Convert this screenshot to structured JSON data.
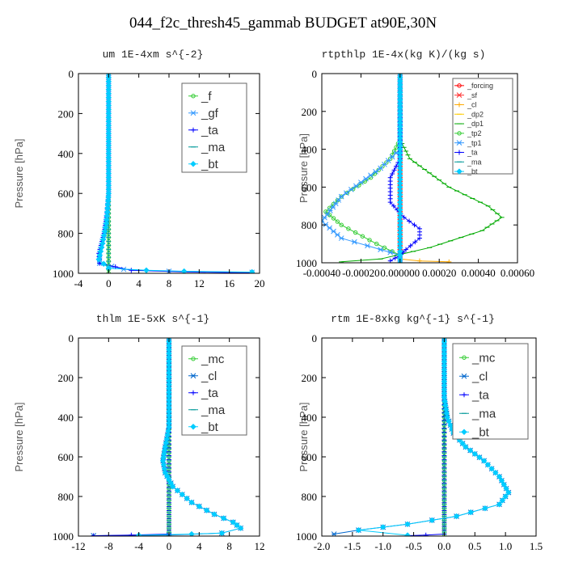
{
  "figure_title": "044_f2c_thresh45_gammab  BUDGET at90E,30N",
  "colors": {
    "f": "#33cc33",
    "gf": "#3399ff",
    "ta": "#0000ff",
    "ma": "#009999",
    "bt": "#00ccff",
    "mc": "#33cc33",
    "cl": "#0066cc",
    "forcing": "#ff0000",
    "sf": "#ff3333",
    "cl_rt": "#ffaa00",
    "dp2": "#ffcc00",
    "dp1": "#00aa00",
    "tp2": "#33cc33",
    "tp1": "#3399ff"
  },
  "chart_data": [
    {
      "type": "line",
      "title": "um  1E-4xm s^{-2}",
      "ylabel": "Pressure [hPa]",
      "xlim": [
        -4,
        20
      ],
      "ylim": [
        1000,
        0
      ],
      "xticks": [
        "-4",
        "0",
        "4",
        "8",
        "12",
        "16",
        "20"
      ],
      "yticks": [
        "0",
        "200",
        "400",
        "600",
        "800",
        "1000"
      ],
      "legend": "top-right",
      "series": [
        {
          "name": "_f",
          "color_key": "f",
          "marker": "circle",
          "points": [
            [
              0,
              0
            ],
            [
              0,
              200
            ],
            [
              0,
              400
            ],
            [
              0,
              600
            ],
            [
              0,
              800
            ],
            [
              0,
              1000
            ]
          ]
        },
        {
          "name": "_gf",
          "color_key": "gf",
          "marker": "star",
          "points": [
            [
              0,
              0
            ],
            [
              0,
              500
            ],
            [
              0,
              600
            ],
            [
              -0.2,
              700
            ],
            [
              -0.6,
              800
            ],
            [
              -1.2,
              900
            ],
            [
              -1.2,
              950
            ],
            [
              2,
              980
            ],
            [
              8,
              990
            ],
            [
              19,
              995
            ]
          ]
        },
        {
          "name": "_ta",
          "color_key": "ta",
          "marker": "plus",
          "points": [
            [
              0,
              0
            ],
            [
              0,
              600
            ],
            [
              -0.2,
              700
            ],
            [
              -0.6,
              800
            ],
            [
              -1.3,
              900
            ],
            [
              -1.2,
              950
            ],
            [
              3,
              985
            ],
            [
              10,
              993
            ],
            [
              19,
              998
            ]
          ]
        },
        {
          "name": "_ma",
          "color_key": "ma",
          "marker": "dash",
          "points": [
            [
              0,
              0
            ],
            [
              0,
              1000
            ]
          ]
        },
        {
          "name": "_bt",
          "color_key": "bt",
          "marker": "diamond",
          "points": [
            [
              0,
              0
            ],
            [
              0,
              600
            ],
            [
              -0.3,
              750
            ],
            [
              -0.8,
              850
            ],
            [
              -1.3,
              930
            ],
            [
              0,
              975
            ],
            [
              5,
              985
            ],
            [
              10,
              990
            ],
            [
              19,
              994
            ]
          ]
        }
      ]
    },
    {
      "type": "line",
      "title": "rtpthlp  1E-4x(kg K)/(kg s)",
      "ylabel": "Pressure [hPa]",
      "xlim": [
        -0.0004,
        0.0006
      ],
      "ylim": [
        1000,
        0
      ],
      "xticks": [
        "-0.00040",
        "-0.00020",
        "0.000000",
        "0.00020",
        "0.00040",
        "0.00060"
      ],
      "yticks": [
        "0",
        "200",
        "400",
        "600",
        "800",
        "1000"
      ],
      "legend": "top-right",
      "series": [
        {
          "name": "_forcing",
          "color_key": "forcing",
          "marker": "circle",
          "points": [
            [
              0,
              0
            ],
            [
              0,
              1000
            ]
          ]
        },
        {
          "name": "_sf",
          "color_key": "sf",
          "marker": "star",
          "points": [
            [
              0,
              0
            ],
            [
              0,
              1000
            ]
          ]
        },
        {
          "name": "_cl",
          "color_key": "cl_rt",
          "marker": "plus",
          "points": [
            [
              0,
              0
            ],
            [
              0,
              980
            ],
            [
              0.0001,
              990
            ],
            [
              0.00025,
              995
            ]
          ]
        },
        {
          "name": "_dp2",
          "color_key": "dp2",
          "marker": "dash",
          "points": [
            [
              0,
              0
            ],
            [
              0,
              1000
            ]
          ]
        },
        {
          "name": "_dp1",
          "color_key": "dp1",
          "marker": "dash",
          "points": [
            [
              0,
              0
            ],
            [
              0,
              350
            ],
            [
              5e-05,
              450
            ],
            [
              0.00025,
              600
            ],
            [
              0.00045,
              700
            ],
            [
              0.00052,
              760
            ],
            [
              0.00042,
              830
            ],
            [
              0.00015,
              920
            ],
            [
              -0.0001,
              980
            ],
            [
              -0.0003,
              995
            ]
          ]
        },
        {
          "name": "_tp2",
          "color_key": "tp2",
          "marker": "circle",
          "points": [
            [
              0,
              0
            ],
            [
              0,
              350
            ],
            [
              -5e-05,
              450
            ],
            [
              -0.00015,
              550
            ],
            [
              -0.0003,
              650
            ],
            [
              -0.00038,
              730
            ],
            [
              -0.0003,
              800
            ],
            [
              -0.00012,
              900
            ],
            [
              0,
              960
            ],
            [
              0,
              1000
            ]
          ]
        },
        {
          "name": "_tp1",
          "color_key": "tp1",
          "marker": "star",
          "points": [
            [
              0,
              0
            ],
            [
              0,
              400
            ],
            [
              -0.0001,
              500
            ],
            [
              -0.0003,
              650
            ],
            [
              -0.0004,
              780
            ],
            [
              -0.0003,
              870
            ],
            [
              -0.0001,
              930
            ],
            [
              0,
              960
            ],
            [
              0,
              1000
            ]
          ]
        },
        {
          "name": "_ta",
          "color_key": "ta",
          "marker": "plus",
          "points": [
            [
              0,
              0
            ],
            [
              0,
              450
            ],
            [
              -5e-05,
              550
            ],
            [
              -5e-05,
              680
            ],
            [
              2e-05,
              760
            ],
            [
              0.0001,
              820
            ],
            [
              0.0001,
              870
            ],
            [
              3e-05,
              930
            ],
            [
              0,
              960
            ],
            [
              -5e-05,
              990
            ]
          ]
        },
        {
          "name": "_ma",
          "color_key": "ma",
          "marker": "dash",
          "points": [
            [
              0,
              0
            ],
            [
              0,
              1000
            ]
          ]
        },
        {
          "name": "_bt",
          "color_key": "bt",
          "marker": "diamond",
          "points": [
            [
              0,
              0
            ],
            [
              0,
              1000
            ]
          ]
        }
      ]
    },
    {
      "type": "line",
      "title": "thlm  1E-5xK s^{-1}",
      "ylabel": "Pressure [hPa]",
      "xlim": [
        -12,
        12
      ],
      "ylim": [
        1000,
        0
      ],
      "xticks": [
        "-12",
        "-8",
        "-4",
        "0",
        "4",
        "8",
        "12"
      ],
      "yticks": [
        "0",
        "200",
        "400",
        "600",
        "800",
        "1000"
      ],
      "legend": "top-right",
      "series": [
        {
          "name": "_mc",
          "color_key": "mc",
          "marker": "circle",
          "points": [
            [
              0,
              0
            ],
            [
              0,
              1000
            ]
          ]
        },
        {
          "name": "_cl",
          "color_key": "cl",
          "marker": "star",
          "points": [
            [
              0,
              0
            ],
            [
              0,
              450
            ],
            [
              -0.5,
              550
            ],
            [
              -0.8,
              620
            ],
            [
              -0.5,
              680
            ],
            [
              0.5,
              750
            ],
            [
              3,
              830
            ],
            [
              6,
              890
            ],
            [
              8.5,
              930
            ],
            [
              9.5,
              960
            ],
            [
              7,
              985
            ],
            [
              0,
              995
            ],
            [
              -10,
              998
            ]
          ]
        },
        {
          "name": "_ta",
          "color_key": "ta",
          "marker": "plus",
          "points": [
            [
              0,
              0
            ],
            [
              0,
              990
            ],
            [
              -5,
              995
            ],
            [
              -10,
              998
            ]
          ]
        },
        {
          "name": "_ma",
          "color_key": "ma",
          "marker": "dash",
          "points": [
            [
              0,
              0
            ],
            [
              0,
              1000
            ]
          ]
        },
        {
          "name": "_bt",
          "color_key": "bt",
          "marker": "diamond",
          "points": [
            [
              0,
              0
            ],
            [
              0,
              450
            ],
            [
              -0.5,
              550
            ],
            [
              -0.8,
              620
            ],
            [
              -0.5,
              680
            ],
            [
              0.5,
              750
            ],
            [
              3,
              830
            ],
            [
              6,
              890
            ],
            [
              8.5,
              930
            ],
            [
              9.5,
              960
            ],
            [
              7,
              985
            ],
            [
              3,
              990
            ],
            [
              -4,
              996
            ]
          ]
        }
      ]
    },
    {
      "type": "line",
      "title": "rtm  1E-8xkg kg^{-1} s^{-1}",
      "ylabel": "Pressure [hPa]",
      "xlim": [
        -2.0,
        1.5
      ],
      "ylim": [
        1000,
        0
      ],
      "xticks": [
        "-2.0",
        "-1.5",
        "-1.0",
        "-0.5",
        "0.0",
        "0.5",
        "1.0",
        "1.5"
      ],
      "yticks": [
        "0",
        "200",
        "400",
        "600",
        "800",
        "1000"
      ],
      "legend": "top-right",
      "series": [
        {
          "name": "_mc",
          "color_key": "mc",
          "marker": "circle",
          "points": [
            [
              0,
              0
            ],
            [
              0,
              1000
            ]
          ]
        },
        {
          "name": "_cl",
          "color_key": "cl",
          "marker": "star",
          "points": [
            [
              0,
              0
            ],
            [
              0,
              300
            ],
            [
              0.05,
              400
            ],
            [
              0.15,
              480
            ],
            [
              0.35,
              550
            ],
            [
              0.65,
              620
            ],
            [
              0.9,
              700
            ],
            [
              1.05,
              780
            ],
            [
              0.9,
              840
            ],
            [
              0.2,
              900
            ],
            [
              -0.6,
              940
            ],
            [
              -1.4,
              970
            ],
            [
              -1.8,
              990
            ]
          ]
        },
        {
          "name": "_ta",
          "color_key": "ta",
          "marker": "plus",
          "points": [
            [
              0,
              0
            ],
            [
              0,
              990
            ],
            [
              -0.3,
              995
            ],
            [
              -0.6,
              998
            ]
          ]
        },
        {
          "name": "_ma",
          "color_key": "ma",
          "marker": "dash",
          "points": [
            [
              0,
              0
            ],
            [
              0,
              1000
            ]
          ]
        },
        {
          "name": "_bt",
          "color_key": "bt",
          "marker": "diamond",
          "points": [
            [
              0,
              0
            ],
            [
              0,
              300
            ],
            [
              0.05,
              400
            ],
            [
              0.15,
              480
            ],
            [
              0.35,
              550
            ],
            [
              0.65,
              620
            ],
            [
              0.9,
              700
            ],
            [
              1.05,
              780
            ],
            [
              0.9,
              840
            ],
            [
              0.2,
              900
            ],
            [
              -0.6,
              940
            ],
            [
              -1.4,
              970
            ],
            [
              -0.6,
              996
            ]
          ]
        }
      ]
    }
  ]
}
